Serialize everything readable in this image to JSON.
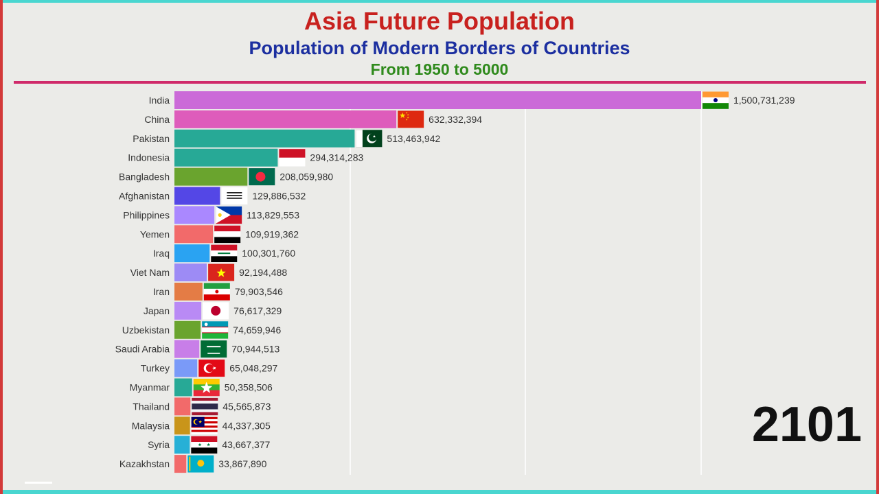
{
  "header": {
    "title": "Asia Future Population",
    "subtitle": "Population of Modern Borders of Countries",
    "range": "From 1950 to 5000"
  },
  "year": "2101",
  "chart_data": {
    "type": "bar",
    "orientation": "horizontal",
    "categories": [
      "India",
      "China",
      "Pakistan",
      "Indonesia",
      "Bangladesh",
      "Afghanistan",
      "Philippines",
      "Yemen",
      "Iraq",
      "Viet Nam",
      "Iran",
      "Japan",
      "Uzbekistan",
      "Saudi Arabia",
      "Turkey",
      "Myanmar",
      "Thailand",
      "Malaysia",
      "Syria",
      "Kazakhstan"
    ],
    "values": [
      1500731239,
      632332394,
      513463942,
      294314283,
      208059980,
      129886532,
      113829553,
      109919362,
      100301760,
      92194488,
      79903546,
      76617329,
      74659946,
      70944513,
      65048297,
      50358506,
      45565873,
      44337305,
      43667377,
      33867890
    ],
    "value_labels": [
      "1,500,731,239",
      "632,332,394",
      "513,463,942",
      "294,314,283",
      "208,059,980",
      "129,886,532",
      "113,829,553",
      "109,919,362",
      "100,301,760",
      "92,194,488",
      "79,903,546",
      "76,617,329",
      "74,659,946",
      "70,944,513",
      "65,048,297",
      "50,358,506",
      "45,565,873",
      "44,337,305",
      "43,667,377",
      "33,867,890"
    ],
    "colors": [
      "#cb6ad8",
      "#de5cbb",
      "#27a996",
      "#27a996",
      "#6aa42e",
      "#5447e6",
      "#aa88ff",
      "#f26a6a",
      "#2aa3f2",
      "#9d8bf5",
      "#e47c45",
      "#b98af5",
      "#6aa42e",
      "#c87ee8",
      "#7a9af8",
      "#27a996",
      "#f26a6a",
      "#c9951a",
      "#27b0d6",
      "#f26a6a"
    ],
    "flag_icons": [
      "india-flag-icon",
      "china-flag-icon",
      "pakistan-flag-icon",
      "indonesia-flag-icon",
      "bangladesh-flag-icon",
      "afghanistan-flag-icon",
      "philippines-flag-icon",
      "yemen-flag-icon",
      "iraq-flag-icon",
      "viet-nam-flag-icon",
      "iran-flag-icon",
      "japan-flag-icon",
      "uzbekistan-flag-icon",
      "saudi-arabia-flag-icon",
      "turkey-flag-icon",
      "myanmar-flag-icon",
      "thailand-flag-icon",
      "malaysia-flag-icon",
      "syria-flag-icon",
      "kazakhstan-flag-icon"
    ],
    "xlim": [
      0,
      1500731239
    ],
    "gridlines": [
      500000000,
      1000000000,
      1500000000
    ],
    "grid": true,
    "tick_labels_visible": false
  }
}
